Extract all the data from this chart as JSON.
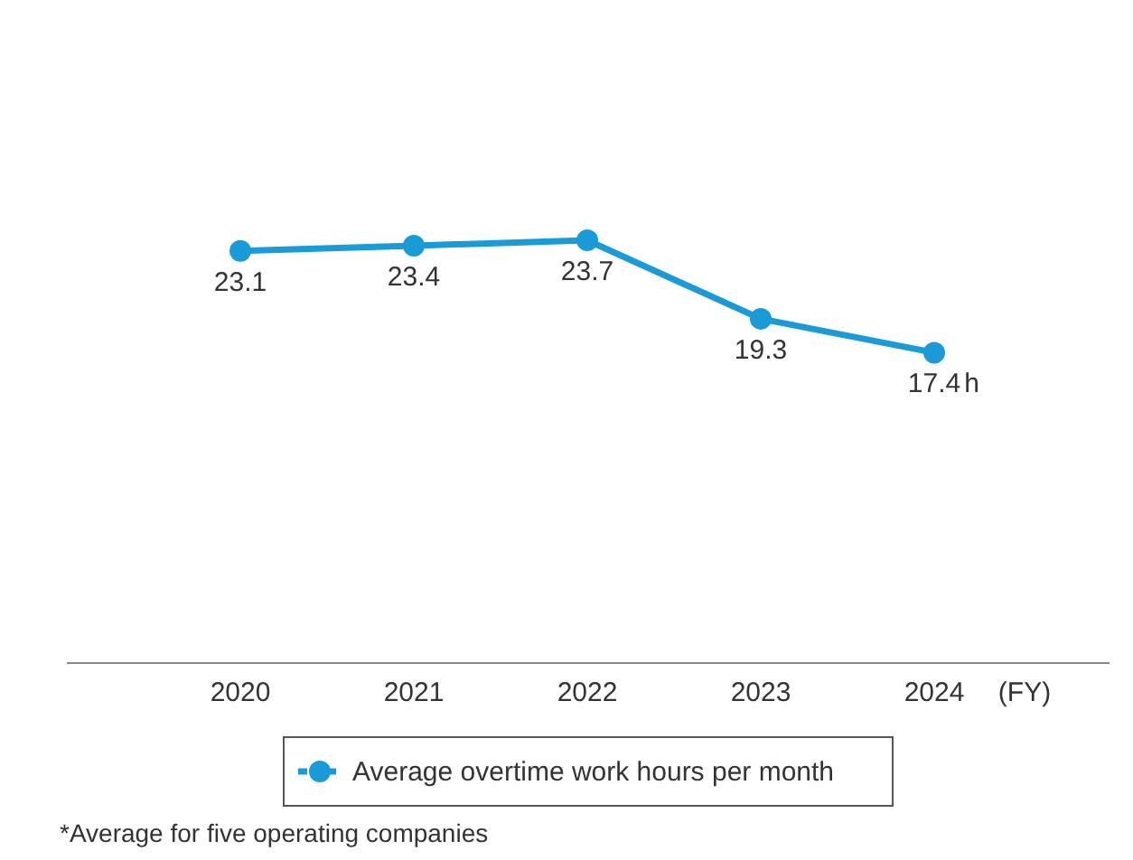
{
  "chart_data": {
    "type": "line",
    "xlabel": "(FY)",
    "categories": [
      "2020",
      "2021",
      "2022",
      "2023",
      "2024"
    ],
    "series": [
      {
        "name": "Average overtime work hours per month",
        "color": "#1a9bd7",
        "values": [
          23.1,
          23.4,
          23.7,
          19.3,
          17.4
        ]
      }
    ],
    "data_labels": true,
    "marker": "circle",
    "line_style": "solid",
    "legend": "bottom",
    "grid": false,
    "tick_labels": "x",
    "annotations": [
      "*Average for five operating companies",
      {
        "text": "h",
        "x": "2024",
        "y": 17.4
      }
    ]
  }
}
